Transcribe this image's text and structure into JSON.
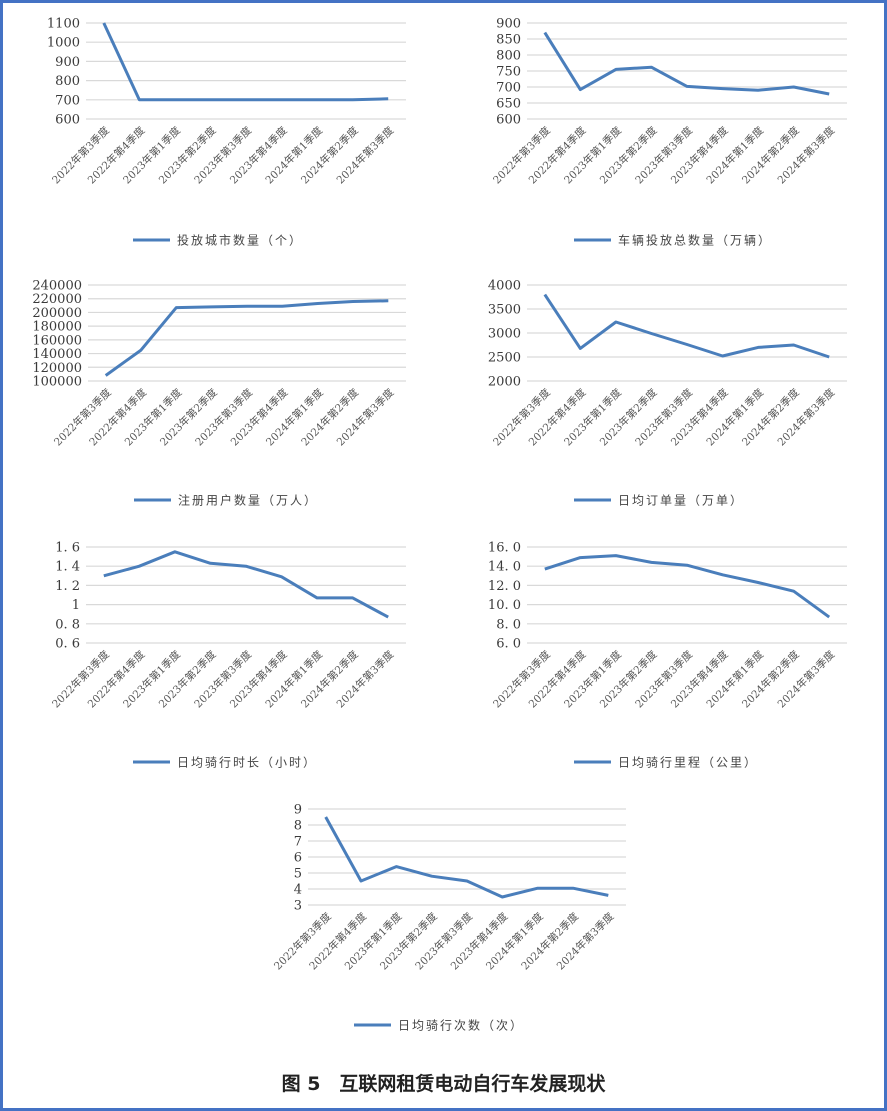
{
  "figure_title": "图 5　互联网租赁电动自行车发展现状",
  "chart_data": [
    {
      "type": "line",
      "title": "",
      "categories": [
        "2022年第3季度",
        "2022年第4季度",
        "2023年第1季度",
        "2023年第2季度",
        "2023年第3季度",
        "2023年第4季度",
        "2024年第1季度",
        "2024年第2季度",
        "2024年第3季度"
      ],
      "series": [
        {
          "name": "投放城市数量（个）",
          "values": [
            1100,
            700,
            700,
            700,
            700,
            700,
            700,
            700,
            705
          ]
        }
      ],
      "ylim": [
        600,
        1100
      ],
      "yticks": [
        600,
        700,
        800,
        900,
        1000,
        1100
      ],
      "ytick_labels": [
        "600",
        "700",
        "800",
        "900",
        "1000",
        "1100"
      ],
      "grid": true,
      "legend": "bottom",
      "color": "#4a7ebb"
    },
    {
      "type": "line",
      "title": "",
      "categories": [
        "2022年第3季度",
        "2022年第4季度",
        "2023年第1季度",
        "2023年第2季度",
        "2023年第3季度",
        "2023年第4季度",
        "2024年第1季度",
        "2024年第2季度",
        "2024年第3季度"
      ],
      "series": [
        {
          "name": "车辆投放总数量（万辆）",
          "values": [
            870,
            692,
            755,
            762,
            702,
            695,
            690,
            700,
            678
          ]
        }
      ],
      "ylim": [
        600,
        900
      ],
      "yticks": [
        600,
        650,
        700,
        750,
        800,
        850,
        900
      ],
      "ytick_labels": [
        "600",
        "650",
        "700",
        "750",
        "800",
        "850",
        "900"
      ],
      "grid": true,
      "legend": "bottom",
      "color": "#4a7ebb"
    },
    {
      "type": "line",
      "title": "",
      "categories": [
        "2022年第3季度",
        "2022年第4季度",
        "2023年第1季度",
        "2023年第2季度",
        "2023年第3季度",
        "2023年第4季度",
        "2024年第1季度",
        "2024年第2季度",
        "2024年第3季度"
      ],
      "series": [
        {
          "name": "注册用户数量（万人）",
          "values": [
            108000,
            145000,
            207000,
            208000,
            209000,
            209000,
            213000,
            216000,
            217000
          ]
        }
      ],
      "ylim": [
        100000,
        240000
      ],
      "yticks": [
        100000,
        120000,
        140000,
        160000,
        180000,
        200000,
        220000,
        240000
      ],
      "ytick_labels": [
        "100000",
        "120000",
        "140000",
        "160000",
        "180000",
        "200000",
        "220000",
        "240000"
      ],
      "grid": true,
      "legend": "bottom",
      "color": "#4a7ebb"
    },
    {
      "type": "line",
      "title": "",
      "categories": [
        "2022年第3季度",
        "2022年第4季度",
        "2023年第1季度",
        "2023年第2季度",
        "2023年第3季度",
        "2023年第4季度",
        "2024年第1季度",
        "2024年第2季度",
        "2024年第3季度"
      ],
      "series": [
        {
          "name": "日均订单量（万单）",
          "values": [
            3800,
            2680,
            3230,
            2990,
            2760,
            2520,
            2700,
            2750,
            2500
          ]
        }
      ],
      "ylim": [
        2000,
        4000
      ],
      "yticks": [
        2000,
        2500,
        3000,
        3500,
        4000
      ],
      "ytick_labels": [
        "2000",
        "2500",
        "3000",
        "3500",
        "4000"
      ],
      "grid": true,
      "legend": "bottom",
      "color": "#4a7ebb"
    },
    {
      "type": "line",
      "title": "",
      "categories": [
        "2022年第3季度",
        "2022年第4季度",
        "2023年第1季度",
        "2023年第2季度",
        "2023年第3季度",
        "2023年第4季度",
        "2024年第1季度",
        "2024年第2季度",
        "2024年第3季度"
      ],
      "series": [
        {
          "name": "日均骑行时长（小时）",
          "values": [
            1.3,
            1.4,
            1.55,
            1.43,
            1.4,
            1.29,
            1.07,
            1.07,
            0.87
          ]
        }
      ],
      "ylim": [
        0.6,
        1.6
      ],
      "yticks": [
        0.6,
        0.8,
        1.0,
        1.2,
        1.4,
        1.6
      ],
      "ytick_labels": [
        "0. 6",
        "0. 8",
        "1",
        "1. 2",
        "1. 4",
        "1. 6"
      ],
      "grid": true,
      "legend": "bottom",
      "color": "#4a7ebb"
    },
    {
      "type": "line",
      "title": "",
      "categories": [
        "2022年第3季度",
        "2022年第4季度",
        "2023年第1季度",
        "2023年第2季度",
        "2023年第3季度",
        "2023年第4季度",
        "2024年第1季度",
        "2024年第2季度",
        "2024年第3季度"
      ],
      "series": [
        {
          "name": "日均骑行里程（公里）",
          "values": [
            13.7,
            14.9,
            15.1,
            14.4,
            14.1,
            13.1,
            12.3,
            11.4,
            8.7
          ]
        }
      ],
      "ylim": [
        6,
        16
      ],
      "yticks": [
        6,
        8,
        10,
        12,
        14,
        16
      ],
      "ytick_labels": [
        "6. 0",
        "8. 0",
        "10. 0",
        "12. 0",
        "14. 0",
        "16. 0"
      ],
      "grid": true,
      "legend": "bottom",
      "color": "#4a7ebb"
    },
    {
      "type": "line",
      "title": "",
      "categories": [
        "2022年第3季度",
        "2022年第4季度",
        "2023年第1季度",
        "2023年第2季度",
        "2023年第3季度",
        "2023年第4季度",
        "2024年第1季度",
        "2024年第2季度",
        "2024年第3季度"
      ],
      "series": [
        {
          "name": "日均骑行次数（次）",
          "values": [
            8.5,
            4.5,
            5.4,
            4.8,
            4.5,
            3.5,
            4.05,
            4.05,
            3.6
          ]
        }
      ],
      "ylim": [
        3,
        9
      ],
      "yticks": [
        3,
        4,
        5,
        6,
        7,
        8,
        9
      ],
      "ytick_labels": [
        "3",
        "4",
        "5",
        "6",
        "7",
        "8",
        "9"
      ],
      "grid": true,
      "legend": "bottom",
      "color": "#4a7ebb"
    }
  ]
}
